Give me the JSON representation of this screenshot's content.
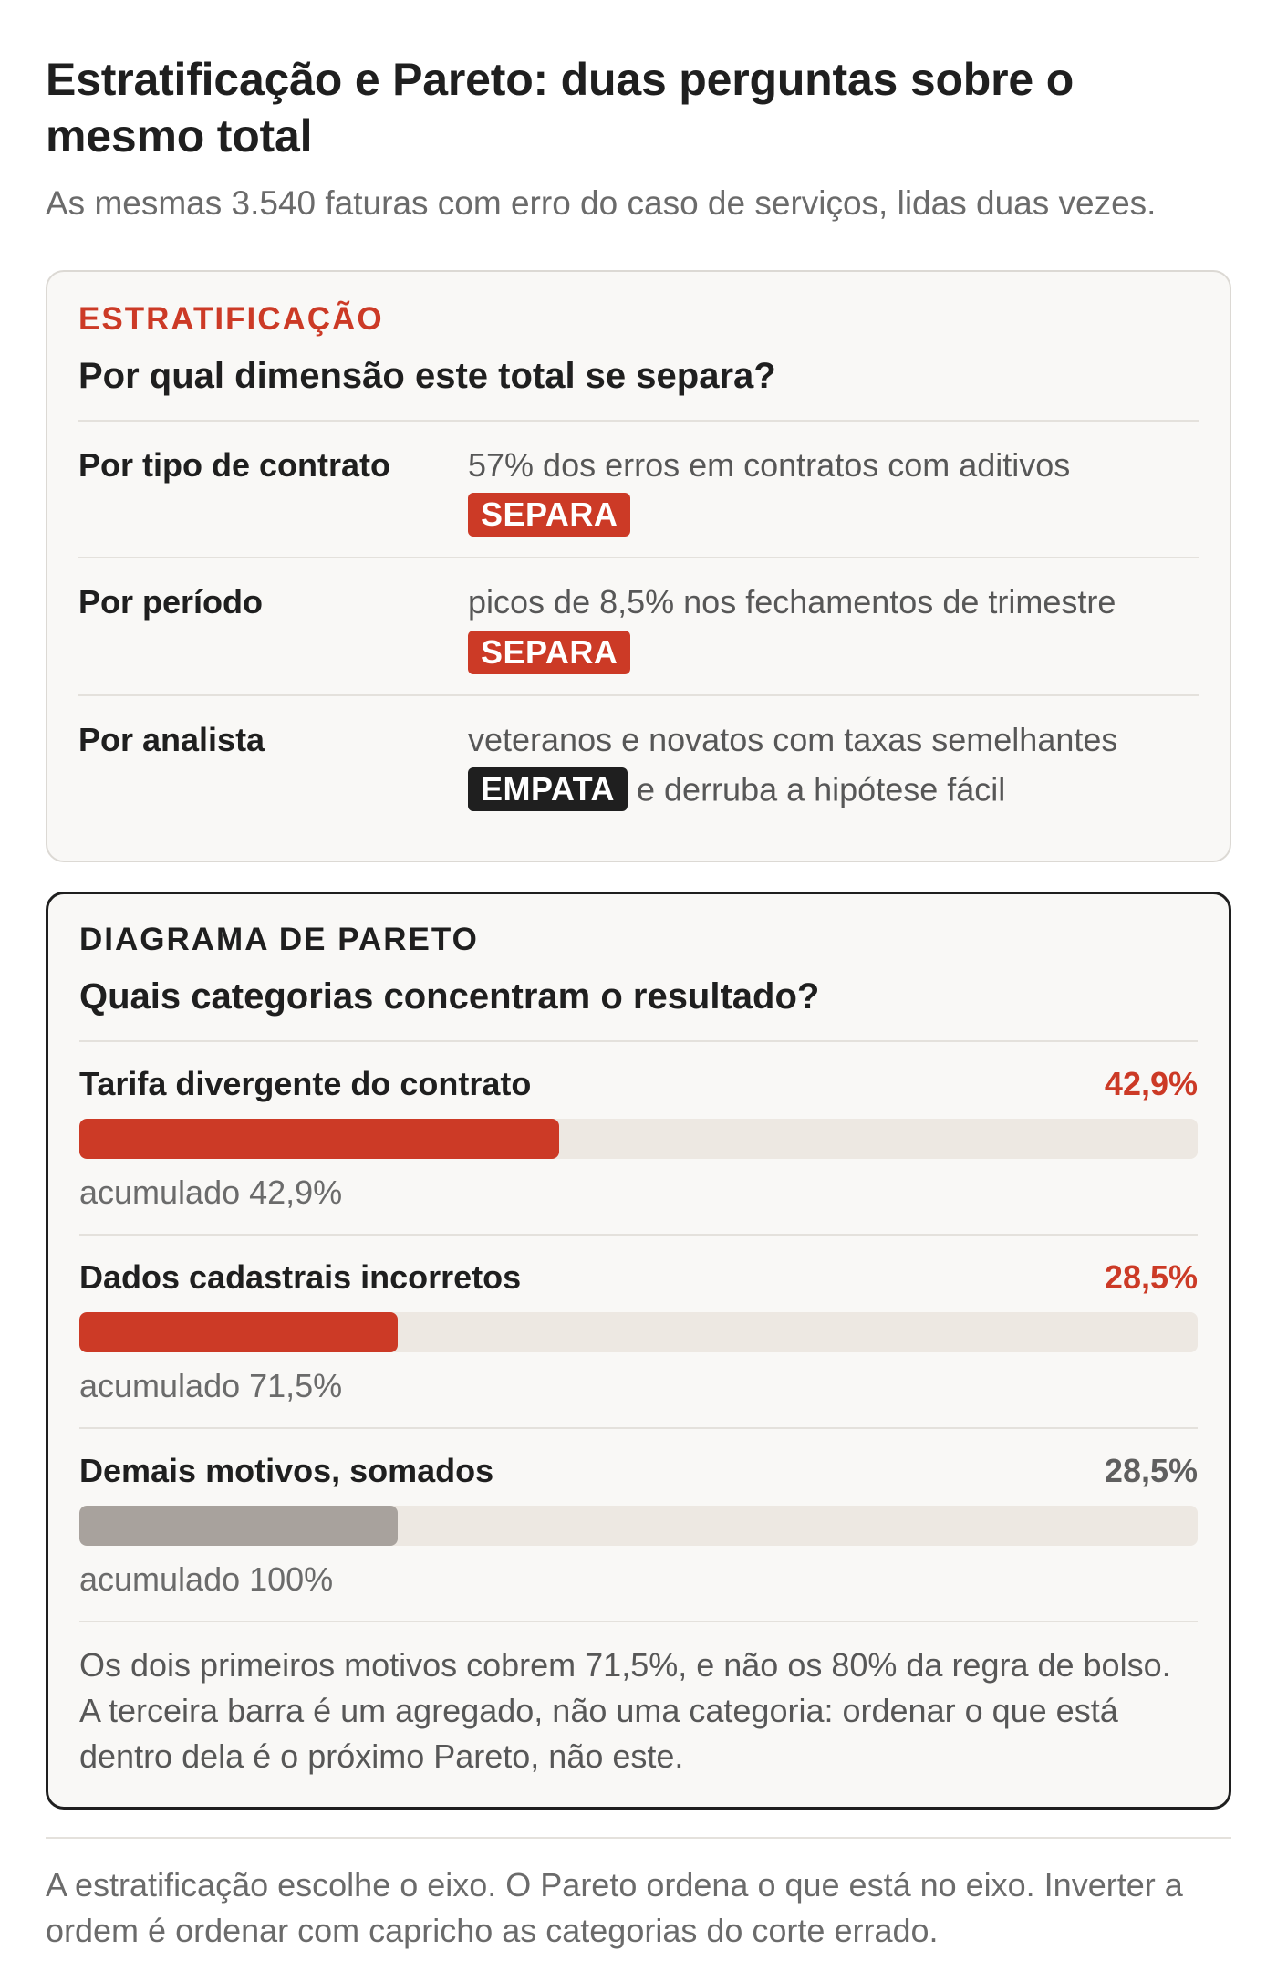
{
  "header": {
    "title": "Estratificação e Pareto: duas perguntas sobre o mesmo total",
    "subtitle": "As mesmas 3.540 faturas com erro do caso de serviços, lidas duas vezes."
  },
  "stratification": {
    "eyebrow": "ESTRATIFICAÇÃO",
    "question": "Por qual dimensão este total se separa?",
    "rows": [
      {
        "label": "Por tipo de contrato",
        "detail": "57% dos erros em contratos com aditivos",
        "badge": "SEPARA",
        "badge_color": "#cc3a26",
        "after_badge": ""
      },
      {
        "label": "Por período",
        "detail": "picos de 8,5% nos fechamentos de trimestre",
        "badge": "SEPARA",
        "badge_color": "#cc3a26",
        "after_badge": ""
      },
      {
        "label": "Por analista",
        "detail": "veteranos e novatos com taxas semelhantes",
        "badge": "EMPATA",
        "badge_color": "#1f1f1f",
        "after_badge": "e derruba a hipótese fácil"
      }
    ]
  },
  "pareto": {
    "eyebrow": "DIAGRAMA DE PARETO",
    "question": "Quais categorias concentram o resultado?",
    "rows": [
      {
        "name": "Tarifa divergente do contrato",
        "value_label": "42,9%",
        "share": 0.429,
        "cumulative": "acumulado 42,9%",
        "color": "#cc3a26"
      },
      {
        "name": "Dados cadastrais incorretos",
        "value_label": "28,5%",
        "share": 0.285,
        "cumulative": "acumulado 71,5%",
        "color": "#cc3a26"
      },
      {
        "name": "Demais motivos, somados",
        "value_label": "28,5%",
        "share": 0.285,
        "cumulative": "acumulado 100%",
        "color": "#a8a29d"
      }
    ],
    "note": "Os dois primeiros motivos cobrem 71,5%, e não os 80% da regra de bolso. A terceira barra é um agregado, não uma categoria: ordenar o que está dentro dela é o próximo Pareto, não este."
  },
  "footer": {
    "text": "A estratificação escolhe o eixo. O Pareto ordena o que está no eixo. Inverter a ordem é ordenar com capricho as categorias do corte errado."
  }
}
